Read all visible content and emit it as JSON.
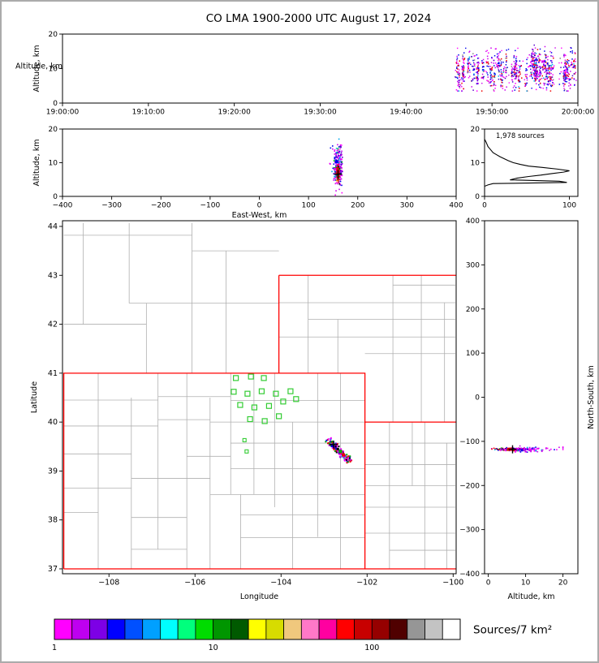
{
  "title": "CO LMA 1900-2000 UTC August 17, 2024",
  "chart_data": [
    {
      "id": "time_height",
      "type": "scatter",
      "xlabel": "",
      "ylabel": "Altitude, km",
      "xlim": [
        0,
        3600
      ],
      "ylim": [
        0,
        20
      ],
      "xticks": [
        {
          "v": 0,
          "l": "19:00:00"
        },
        {
          "v": 600,
          "l": "19:10:00"
        },
        {
          "v": 1200,
          "l": "19:20:00"
        },
        {
          "v": 1800,
          "l": "19:30:00"
        },
        {
          "v": 2400,
          "l": "19:40:00"
        },
        {
          "v": 3000,
          "l": "19:50:00"
        },
        {
          "v": 3600,
          "l": "20:00:00"
        }
      ],
      "yticks": [
        0,
        10,
        20
      ],
      "flashes": {
        "t_start": 2730,
        "t_end": 3592,
        "count": 62,
        "pts_min": 5,
        "pts_max": 26,
        "alt_mean": 9.5,
        "alt_sd": 2.4,
        "alt_min": 3.5,
        "alt_max": 16.8
      },
      "singles": 90,
      "color_weights": [
        [
          "#CC00EE",
          0.2
        ],
        [
          "#FF00FF",
          0.16
        ],
        [
          "#0000EE",
          0.22
        ],
        [
          "#EE0000",
          0.18
        ],
        [
          "#5500CC",
          0.12
        ],
        [
          "#00AAEE",
          0.06
        ],
        [
          "#888888",
          0.06
        ]
      ],
      "singles_weights": [
        [
          "#FF00FF",
          0.5
        ],
        [
          "#CC00EE",
          0.3
        ],
        [
          "#0000EE",
          0.2
        ]
      ]
    },
    {
      "id": "ew_height",
      "type": "scatter",
      "xlabel": "East-West, km",
      "ylabel": "Altitude, km",
      "xlim": [
        -400,
        400
      ],
      "ylim": [
        0,
        20
      ],
      "xticks": [
        -400,
        -300,
        -200,
        -100,
        0,
        100,
        200,
        300,
        400
      ],
      "yticks": [
        0,
        10,
        20
      ],
      "clusters": [
        {
          "cx": 160,
          "cy": 9.2,
          "sx": 4.5,
          "sy": 3.0,
          "n": 260,
          "weights": [
            [
              "#CC00EE",
              0.3
            ],
            [
              "#FF00FF",
              0.2
            ],
            [
              "#0000EE",
              0.18
            ],
            [
              "#00CC00",
              0.12
            ],
            [
              "#00AAEE",
              0.08
            ],
            [
              "#5500CC",
              0.12
            ]
          ]
        },
        {
          "cx": 160,
          "cy": 6.7,
          "sx": 1.3,
          "sy": 1.2,
          "n": 100,
          "weights": [
            [
              "#EE0000",
              0.5
            ],
            [
              "#FF8800",
              0.1
            ],
            [
              "#00AA00",
              0.2
            ],
            [
              "#000000",
              0.1
            ],
            [
              "#0000EE",
              0.1
            ]
          ]
        }
      ],
      "big_points": [
        {
          "x": 157,
          "y": 10.3,
          "c": "#0000EE",
          "s": 4
        },
        {
          "x": 160,
          "y": 7.4,
          "c": "#EE0000",
          "s": 4
        }
      ],
      "cross": {
        "x": 160,
        "y": 6.6,
        "color": "#000000"
      }
    },
    {
      "id": "alt_hist",
      "type": "line",
      "annotation": "1,978 sources",
      "xlim": [
        0,
        110
      ],
      "ylim": [
        0,
        20
      ],
      "xticks": [
        0,
        100
      ],
      "yticks": [
        0,
        10,
        20
      ],
      "profile_counts_alt": [
        [
          0,
          0
        ],
        [
          0,
          3.0
        ],
        [
          4,
          3.4
        ],
        [
          10,
          3.8
        ],
        [
          97,
          4.15
        ],
        [
          88,
          4.5
        ],
        [
          30,
          4.9
        ],
        [
          38,
          5.4
        ],
        [
          52,
          5.9
        ],
        [
          66,
          6.3
        ],
        [
          80,
          6.8
        ],
        [
          93,
          7.2
        ],
        [
          100,
          7.6
        ],
        [
          86,
          8.1
        ],
        [
          68,
          8.6
        ],
        [
          52,
          9.0
        ],
        [
          42,
          9.5
        ],
        [
          34,
          10.0
        ],
        [
          28,
          10.6
        ],
        [
          23,
          11.2
        ],
        [
          18,
          11.8
        ],
        [
          14,
          12.4
        ],
        [
          10,
          13.0
        ],
        [
          8,
          13.6
        ],
        [
          6,
          14.2
        ],
        [
          4,
          14.8
        ],
        [
          3,
          15.4
        ],
        [
          2,
          16.0
        ],
        [
          1,
          16.5
        ],
        [
          0,
          17.0
        ]
      ]
    },
    {
      "id": "map",
      "type": "scatter",
      "xlabel": "Longitude",
      "ylabel": "Latitude",
      "xlim": [
        -109.08,
        -99.93
      ],
      "ylim": [
        36.9,
        44.116
      ],
      "xticks": [
        -108,
        -106,
        -104,
        -102,
        -100
      ],
      "yticks": [
        37,
        38,
        39,
        40,
        41,
        42,
        43,
        44
      ],
      "state_border_color": "#FF0000",
      "county_border_color": "#B0B0B0",
      "station_color": "#33CC33",
      "state_lines": [
        [
          [
            -109.05,
            37.0
          ],
          [
            -109.05,
            41.0
          ],
          [
            -102.05,
            41.0
          ],
          [
            -102.05,
            37.0
          ],
          [
            -109.05,
            37.0
          ]
        ],
        [
          [
            -104.05,
            41.0
          ],
          [
            -104.05,
            43.0
          ]
        ],
        [
          [
            -104.05,
            43.0
          ],
          [
            -99.93,
            43.0
          ]
        ],
        [
          [
            -102.05,
            40.0
          ],
          [
            -99.93,
            40.0
          ]
        ],
        [
          [
            -102.05,
            37.0
          ],
          [
            -99.93,
            37.0
          ]
        ]
      ],
      "county_lines": [
        [
          -102.62,
          37.0,
          -102.62,
          41.0
        ],
        [
          -103.15,
          37.65,
          -103.15,
          41.0
        ],
        [
          -103.73,
          37.0,
          -103.73,
          40.0
        ],
        [
          -104.15,
          38.26,
          -104.15,
          41.0
        ],
        [
          -104.63,
          38.52,
          -104.63,
          41.0
        ],
        [
          -104.94,
          37.0,
          -104.94,
          38.52
        ],
        [
          -105.17,
          38.52,
          -105.17,
          41.0
        ],
        [
          -105.65,
          37.0,
          -105.65,
          40.5
        ],
        [
          -106.19,
          37.0,
          -106.19,
          41.0
        ],
        [
          -106.86,
          37.4,
          -106.86,
          41.0
        ],
        [
          -107.48,
          37.0,
          -107.48,
          40.5
        ],
        [
          -108.25,
          37.0,
          -108.25,
          41.0
        ],
        [
          -102.05,
          40.44,
          -105.17,
          40.44
        ],
        [
          -102.05,
          40.0,
          -105.65,
          40.0
        ],
        [
          -102.05,
          39.57,
          -105.17,
          39.57
        ],
        [
          -102.05,
          39.05,
          -105.17,
          39.05
        ],
        [
          -102.05,
          38.52,
          -105.65,
          38.52
        ],
        [
          -102.05,
          38.1,
          -104.94,
          38.1
        ],
        [
          -102.05,
          37.64,
          -104.94,
          37.64
        ],
        [
          -105.17,
          40.52,
          -106.86,
          40.52
        ],
        [
          -105.65,
          40.05,
          -106.86,
          40.05
        ],
        [
          -105.17,
          39.3,
          -106.19,
          39.3
        ],
        [
          -105.65,
          38.85,
          -107.48,
          38.85
        ],
        [
          -106.19,
          38.05,
          -107.48,
          38.05
        ],
        [
          -106.19,
          37.4,
          -107.48,
          37.4
        ],
        [
          -106.86,
          39.92,
          -109.05,
          39.92
        ],
        [
          -107.48,
          39.35,
          -109.05,
          39.35
        ],
        [
          -107.48,
          38.65,
          -109.05,
          38.65
        ],
        [
          -108.25,
          38.15,
          -109.05,
          38.15
        ],
        [
          -106.86,
          40.45,
          -109.05,
          40.45
        ],
        [
          -105.28,
          41.0,
          -105.28,
          43.5
        ],
        [
          -106.07,
          41.0,
          -106.07,
          44.07
        ],
        [
          -107.13,
          41.0,
          -107.13,
          42.43
        ],
        [
          -107.53,
          42.43,
          -107.53,
          44.07
        ],
        [
          -108.6,
          42.0,
          -108.6,
          44.07
        ],
        [
          -104.05,
          42.43,
          -107.53,
          42.43
        ],
        [
          -107.13,
          42.0,
          -109.05,
          42.0
        ],
        [
          -104.05,
          43.5,
          -106.07,
          43.5
        ],
        [
          -106.07,
          43.82,
          -109.05,
          43.82
        ],
        [
          -103.37,
          41.0,
          -103.37,
          43.0
        ],
        [
          -102.68,
          41.0,
          -102.68,
          42.1
        ],
        [
          -101.4,
          40.0,
          -101.4,
          43.0
        ],
        [
          -100.74,
          40.0,
          -100.74,
          43.0
        ],
        [
          -100.2,
          40.0,
          -100.2,
          42.44
        ],
        [
          -104.05,
          41.74,
          -99.95,
          41.74
        ],
        [
          -102.05,
          41.4,
          -99.95,
          41.4
        ],
        [
          -103.37,
          42.1,
          -99.95,
          42.1
        ],
        [
          -104.05,
          42.44,
          -99.95,
          42.44
        ],
        [
          -101.4,
          42.8,
          -99.95,
          42.8
        ],
        [
          -101.48,
          37.0,
          -101.48,
          40.0
        ],
        [
          -100.95,
          38.7,
          -100.95,
          40.0
        ],
        [
          -100.66,
          37.0,
          -100.66,
          40.0
        ],
        [
          -100.15,
          37.0,
          -100.15,
          39.57
        ],
        [
          -102.05,
          39.57,
          -99.95,
          39.57
        ],
        [
          -102.05,
          39.13,
          -99.95,
          39.13
        ],
        [
          -102.05,
          38.7,
          -99.95,
          38.7
        ],
        [
          -102.05,
          38.26,
          -99.95,
          38.26
        ],
        [
          -102.05,
          37.73,
          -99.95,
          37.73
        ],
        [
          -101.48,
          37.38,
          -99.95,
          37.38
        ]
      ],
      "stations": [
        [
          -105.05,
          40.9
        ],
        [
          -104.7,
          40.93
        ],
        [
          -104.4,
          40.9
        ],
        [
          -105.1,
          40.62
        ],
        [
          -104.78,
          40.58
        ],
        [
          -104.45,
          40.63
        ],
        [
          -104.12,
          40.58
        ],
        [
          -103.78,
          40.63
        ],
        [
          -104.95,
          40.35
        ],
        [
          -104.62,
          40.3
        ],
        [
          -104.28,
          40.33
        ],
        [
          -103.95,
          40.42
        ],
        [
          -103.65,
          40.47
        ],
        [
          -104.72,
          40.06
        ],
        [
          -104.38,
          40.02
        ],
        [
          -104.05,
          40.12
        ]
      ],
      "stations_small": [
        [
          -104.85,
          39.63
        ],
        [
          -104.8,
          39.4
        ]
      ],
      "track": {
        "x1": -102.88,
        "y1": 39.6,
        "x2": -102.4,
        "y2": 39.2,
        "jitter": 0.035,
        "n": 180,
        "weights": [
          [
            "#CC00EE",
            0.2
          ],
          [
            "#FF00FF",
            0.15
          ],
          [
            "#0000EE",
            0.15
          ],
          [
            "#00AA00",
            0.12
          ],
          [
            "#EE0000",
            0.18
          ],
          [
            "#000000",
            0.08
          ],
          [
            "#00AAEE",
            0.06
          ],
          [
            "#5500CC",
            0.06
          ]
        ]
      },
      "big_points": [
        {
          "x": -102.8,
          "y": 39.52,
          "c": "#0000EE",
          "s": 4
        },
        {
          "x": -102.62,
          "y": 39.4,
          "c": "#00AA00",
          "s": 4
        },
        {
          "x": -102.55,
          "y": 39.33,
          "c": "#EE0000",
          "s": 4
        },
        {
          "x": -102.68,
          "y": 39.45,
          "c": "#000000",
          "s": 3
        }
      ],
      "cross": {
        "x": -102.78,
        "y": 39.54,
        "color": "#000000"
      }
    },
    {
      "id": "ns_height",
      "type": "scatter",
      "xlabel": "Altitude, km",
      "ylabel": "North-South, km",
      "xlim": [
        -1,
        24
      ],
      "ylim": [
        -400,
        400
      ],
      "xticks": [
        0,
        10,
        20
      ],
      "yticks": [
        -400,
        -300,
        -200,
        -100,
        0,
        100,
        200,
        300,
        400
      ],
      "clusters": [
        {
          "cx": 6.5,
          "cy": -118,
          "sx": 2.2,
          "sy": 1.5,
          "n": 220,
          "weights": [
            [
              "#EE0000",
              0.3
            ],
            [
              "#00AA00",
              0.15
            ],
            [
              "#0000EE",
              0.15
            ],
            [
              "#CC00EE",
              0.2
            ],
            [
              "#FF00FF",
              0.1
            ],
            [
              "#000000",
              0.1
            ]
          ]
        },
        {
          "cx": 11,
          "cy": -118,
          "sx": 3.5,
          "sy": 2.8,
          "n": 90,
          "weights": [
            [
              "#FF00FF",
              0.4
            ],
            [
              "#CC00EE",
              0.3
            ],
            [
              "#0000EE",
              0.2
            ],
            [
              "#00AAEE",
              0.1
            ]
          ]
        }
      ],
      "big_points": [
        {
          "x": 5.5,
          "y": -118,
          "c": "#EE0000",
          "s": 4
        },
        {
          "x": 9,
          "y": -120,
          "c": "#0000EE",
          "s": 3
        }
      ],
      "cross": {
        "x": 6.5,
        "y": -118,
        "color": "#000000"
      }
    },
    {
      "id": "colorbar",
      "type": "colorbar",
      "label": "Sources/7 km²",
      "colors": [
        "#FF00FF",
        "#BE00F0",
        "#7D00E6",
        "#0000FF",
        "#0050FF",
        "#00A0FF",
        "#00FFFF",
        "#00FF7D",
        "#00DC00",
        "#009600",
        "#005A00",
        "#FFFF00",
        "#D7DC00",
        "#F0C87D",
        "#FF78C8",
        "#FF00A0",
        "#FF0000",
        "#C80000",
        "#960000",
        "#500000",
        "#969696",
        "#C3C3C3",
        "#FFFFFF"
      ],
      "ticks": [
        {
          "pos": 0.0,
          "l": "1"
        },
        {
          "pos": 0.3913,
          "l": "10"
        },
        {
          "pos": 0.7826,
          "l": "100"
        }
      ]
    }
  ]
}
